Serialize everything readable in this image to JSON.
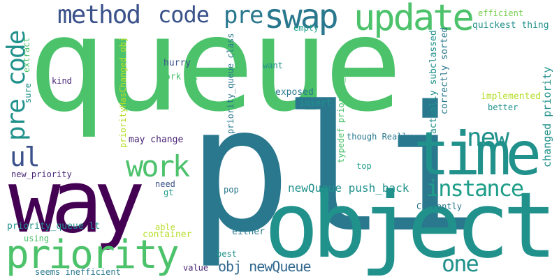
{
  "words": {
    "queue": "queue",
    "pli": "pli",
    "object": "object",
    "way": "way",
    "time": "time",
    "priority": "priority",
    "update": "update",
    "swap": "swap",
    "method": "method",
    "code": "code",
    "pre": "pre",
    "pre_code": "pre code",
    "work": "work",
    "ul": "ul",
    "new": "new",
    "instance": "instance",
    "one": "one",
    "obj_newQueue": "obj newQueue",
    "newQueue_push_back": "newQueue push_back",
    "efficient": "efficient",
    "quickest_thing": "quickest thing",
    "empty": "empty",
    "extract": "extract",
    "kind": "kind",
    "hurry": "hurry",
    "work_ok": "work ok",
    "want": "want",
    "exposed": "exposed",
    "insert": "insert",
    "priority_queue_class": "priority_queue class",
    "typedef_priority_queue": "typedef priority_queue",
    "actually_subclassed": "actually subclassed",
    "correctly_sorted": "correctly sorted",
    "changed_priority": "changed priority",
    "implemented": "implemented",
    "better": "better",
    "sure": "sure",
    "priorityHasChanged_obj": "priorityHasChanged obj",
    "may_change": "may change",
    "though_Really": "though Really",
    "top": "top",
    "new_priority": "new_priority",
    "need": "need",
    "gt": "gt",
    "pop": "pop",
    "priority_queue_lt": "priority_queue lt",
    "able": "able",
    "container": "container",
    "either": "either",
    "using": "using",
    "best": "best",
    "value": "value",
    "seems_inefficient": "seems inefficient",
    "Currently": "Currently"
  }
}
